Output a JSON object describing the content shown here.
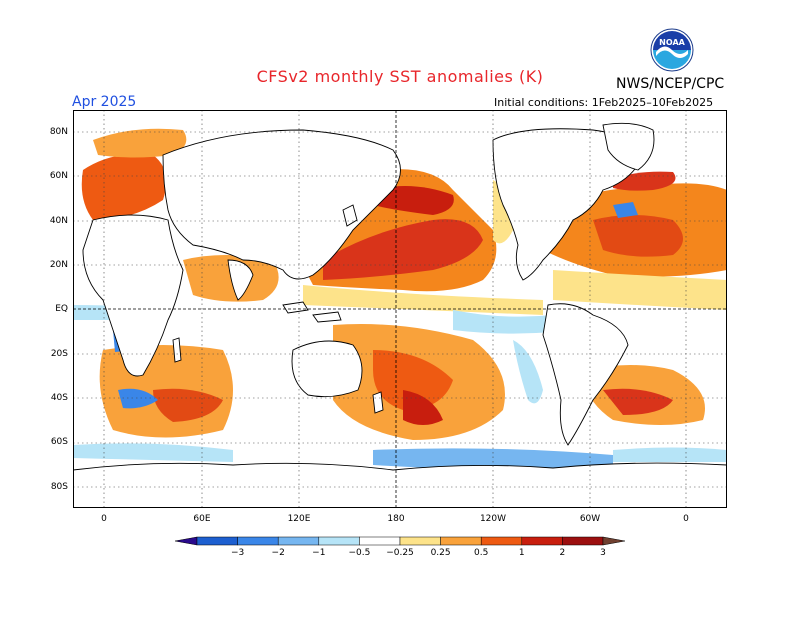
{
  "header": {
    "title": "CFSv2 monthly SST anomalies (K)",
    "agency": "NWS/NCEP/CPC",
    "logo_text": "NOAA",
    "forecast_month": "Apr 2025",
    "initial_conditions": "Initial conditions: 1Feb2025–10Feb2025"
  },
  "axes": {
    "lat_labels": [
      "80N",
      "60N",
      "40N",
      "20N",
      "EQ",
      "20S",
      "40S",
      "60S",
      "80S"
    ],
    "lon_labels": [
      "0",
      "60E",
      "120E",
      "180",
      "120W",
      "60W",
      "0"
    ]
  },
  "colorbar": {
    "labels": [
      "−3",
      "−2",
      "−1",
      "−0.5",
      "−0.25",
      "0.25",
      "0.5",
      "1",
      "2",
      "3"
    ],
    "colors": [
      "#2a0a8c",
      "#1d5fd0",
      "#3a86e8",
      "#76b6f0",
      "#b6e4f7",
      "#ffffff",
      "#fde38a",
      "#f9a23b",
      "#ee5a12",
      "#c81e0e",
      "#9c0f0f",
      "#704030"
    ]
  },
  "colors": {
    "title": "#e8262b",
    "month": "#2050e0",
    "land": "#ffffff"
  }
}
